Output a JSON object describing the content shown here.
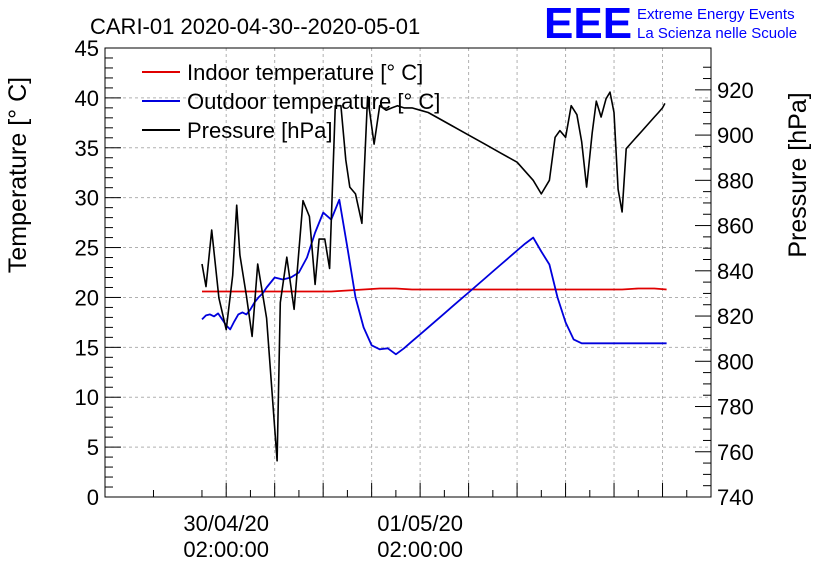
{
  "chart_data": {
    "type": "line",
    "title": "CARI-01 2020-04-30--2020-05-01",
    "logo": {
      "text": "EEE",
      "line1": "Extreme Energy Events",
      "line2": "La Scienza nelle Scuole"
    },
    "colors": {
      "indoor": "#e00000",
      "outdoor": "#0000dd",
      "pressure": "#000000",
      "logo": "#0000ff"
    },
    "x_axis": {
      "range_hours": [
        -15,
        60
      ],
      "ticks": [
        {
          "hour": 0,
          "line1": "30/04/20",
          "line2": "02:00:00"
        },
        {
          "hour": 24,
          "line1": "01/05/20",
          "line2": "02:00:00"
        }
      ],
      "grid_hours": [
        0,
        6,
        12,
        18,
        24,
        30,
        36,
        42,
        48,
        54
      ]
    },
    "y_left": {
      "label": "Temperature [° C]",
      "range": [
        0,
        45
      ],
      "ticks": [
        0,
        5,
        10,
        15,
        20,
        25,
        30,
        35,
        40,
        45
      ]
    },
    "y_right": {
      "label": "Pressure [hPa]",
      "range": [
        740,
        938.5
      ],
      "ticks": [
        740,
        760,
        780,
        800,
        820,
        840,
        860,
        880,
        900,
        920
      ]
    },
    "legend": {
      "placement": "top-left",
      "entries": [
        {
          "key": "indoor",
          "label": "Indoor temperature [° C]"
        },
        {
          "key": "outdoor",
          "label": "Outdoor temperature [° C]"
        },
        {
          "key": "pressure",
          "label": "Pressure [hPa]"
        }
      ]
    },
    "series": [
      {
        "key": "indoor",
        "name": "Indoor temperature [° C]",
        "axis": "left",
        "x": [
          -3,
          -2,
          -1,
          1,
          3,
          5,
          7,
          9,
          11,
          13,
          15,
          17,
          19,
          21,
          23,
          25,
          27,
          29,
          31,
          33,
          35,
          37,
          39,
          41,
          43,
          45,
          47,
          49,
          51,
          53,
          54.5
        ],
        "y": [
          20.6,
          20.6,
          20.6,
          20.6,
          20.6,
          20.6,
          20.6,
          20.6,
          20.6,
          20.6,
          20.7,
          20.8,
          20.9,
          20.9,
          20.8,
          20.8,
          20.8,
          20.8,
          20.8,
          20.8,
          20.8,
          20.8,
          20.8,
          20.8,
          20.8,
          20.8,
          20.8,
          20.8,
          20.9,
          20.9,
          20.8
        ]
      },
      {
        "key": "outdoor",
        "name": "Outdoor temperature [° C]",
        "axis": "left",
        "x": [
          -3,
          -2.5,
          -2,
          -1.5,
          -1,
          -0.5,
          0,
          0.5,
          1,
          1.5,
          2,
          2.5,
          3,
          3.5,
          4,
          4.5,
          5,
          6,
          7,
          8,
          9,
          10,
          11,
          12,
          13,
          14,
          15,
          16,
          17,
          18,
          19,
          20,
          21,
          22,
          23,
          24,
          25,
          26,
          27,
          28,
          29,
          30,
          31,
          32,
          33,
          34,
          35,
          36,
          37,
          38,
          39,
          40,
          41,
          42,
          43,
          44,
          45,
          46,
          47,
          48,
          49,
          50,
          51,
          52,
          53,
          54,
          54.5
        ],
        "y": [
          17.8,
          18.2,
          18.3,
          18.1,
          18.4,
          17.8,
          17.2,
          16.8,
          17.6,
          18.3,
          18.5,
          18.3,
          18.8,
          19.5,
          20.0,
          20.4,
          21.0,
          22.0,
          21.8,
          22.0,
          22.5,
          24.0,
          26.5,
          28.5,
          27.8,
          29.8,
          25.0,
          20.0,
          17.0,
          15.2,
          14.8,
          14.9,
          14.3,
          14.9,
          15.6,
          16.3,
          17.0,
          17.7,
          18.4,
          19.1,
          19.8,
          20.5,
          21.2,
          21.9,
          22.6,
          23.3,
          24.0,
          24.7,
          25.4,
          26.0,
          24.6,
          23.3,
          20.0,
          17.5,
          15.8,
          15.4,
          15.4,
          15.4,
          15.4,
          15.4,
          15.4,
          15.4,
          15.4,
          15.4,
          15.4,
          15.4,
          15.4
        ]
      },
      {
        "key": "pressure",
        "name": "Pressure [hPa]",
        "axis": "right",
        "x": [
          -3,
          -2.5,
          -1.8,
          -0.9,
          0,
          0.8,
          1.3,
          1.7,
          2.5,
          3.2,
          3.9,
          5,
          6.3,
          6.7,
          7.5,
          8.4,
          9.5,
          10.3,
          11.0,
          11.5,
          12.2,
          12.8,
          13.5,
          14.2,
          14.8,
          15.3,
          16.0,
          16.8,
          17.5,
          18.3,
          19.0,
          19.8,
          20.5,
          21.2,
          22.0,
          23.0,
          24.0,
          25.0,
          26.0,
          28.0,
          30.0,
          32.0,
          34.0,
          36.0,
          38.0,
          39.0,
          40.0,
          40.7,
          41.3,
          42.0,
          42.7,
          43.4,
          44.0,
          44.6,
          45.3,
          45.8,
          46.4,
          47.0,
          47.5,
          48.0,
          48.5,
          49.0,
          49.5,
          50.0,
          50.5,
          51.0,
          51.5,
          52.0,
          52.5,
          53.0,
          53.5,
          54.0,
          54.3
        ],
        "y": [
          843,
          833,
          858,
          828,
          814,
          838,
          869,
          847,
          829,
          811,
          843,
          819,
          756,
          826,
          846,
          823,
          871,
          864,
          834,
          854,
          854,
          841,
          913,
          913,
          889,
          877,
          874,
          861,
          917,
          896,
          913,
          911,
          912,
          913,
          912,
          912,
          911,
          910,
          908,
          904,
          900,
          896,
          892,
          888,
          880,
          874,
          880,
          899,
          902,
          899,
          913,
          909,
          897,
          877,
          901,
          915,
          908,
          916,
          919,
          910,
          876,
          866,
          894,
          896,
          898,
          900,
          902,
          904,
          906,
          908,
          910,
          912,
          914
        ]
      }
    ]
  }
}
